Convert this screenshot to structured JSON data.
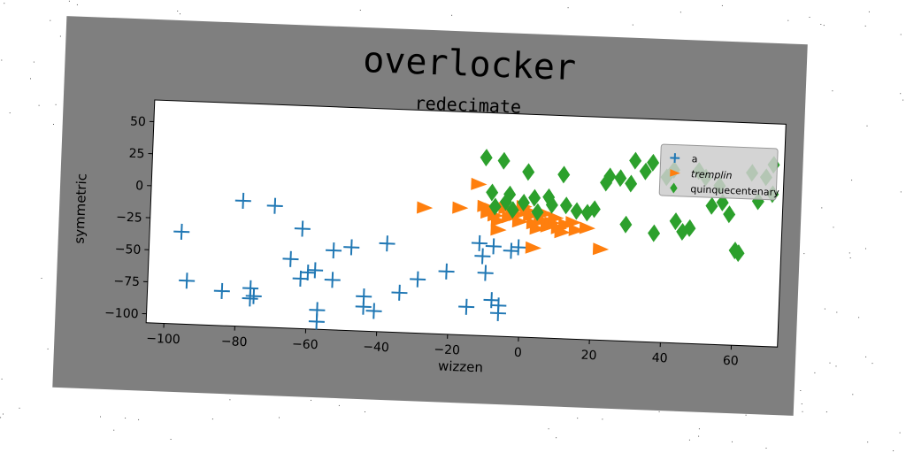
{
  "chart_data": {
    "type": "scatter",
    "title": "overlocker",
    "subtitle": "redecimate",
    "xlabel": "wizzen",
    "ylabel": "symmetric",
    "xlim": [
      -105,
      73
    ],
    "ylim": [
      -107,
      67
    ],
    "xticks": [
      -100,
      -80,
      -60,
      -40,
      -20,
      0,
      20,
      40,
      60
    ],
    "yticks": [
      50,
      25,
      0,
      -25,
      -50,
      -75,
      -100
    ],
    "legend_position": "top-right",
    "grid": false,
    "series": [
      {
        "name": "a",
        "marker": "plus",
        "color": "#1f77b4",
        "points": [
          [
            -96,
            -35
          ],
          [
            -94,
            -73
          ],
          [
            -84,
            -80
          ],
          [
            -79,
            -9
          ],
          [
            -76,
            -77
          ],
          [
            -76,
            -85
          ],
          [
            -75,
            -83
          ],
          [
            -70,
            -12
          ],
          [
            -62,
            -29
          ],
          [
            -65,
            -53
          ],
          [
            -62,
            -68
          ],
          [
            -60,
            -63
          ],
          [
            -58,
            -61
          ],
          [
            -57,
            -92
          ],
          [
            -57,
            -101
          ],
          [
            -53,
            -45
          ],
          [
            -53,
            -68
          ],
          [
            -48,
            -42
          ],
          [
            -44,
            -80
          ],
          [
            -44,
            -88
          ],
          [
            -41,
            -91
          ],
          [
            -38,
            -38
          ],
          [
            -34,
            -76
          ],
          [
            -29,
            -65
          ],
          [
            -21,
            -58
          ],
          [
            -15,
            -85
          ],
          [
            -12,
            -35
          ],
          [
            -11,
            -45
          ],
          [
            -10,
            -58
          ],
          [
            -8,
            -79
          ],
          [
            -6,
            -83
          ],
          [
            -6,
            -89
          ],
          [
            -8,
            -37
          ],
          [
            -3,
            -40
          ],
          [
            -1,
            -37
          ]
        ]
      },
      {
        "name": "tremplin",
        "marker": "triangle-right",
        "color": "#ff7f0e",
        "points": [
          [
            -28,
            -9
          ],
          [
            -18,
            -8
          ],
          [
            -11,
            -6
          ],
          [
            -10,
            -11
          ],
          [
            -9,
            -8
          ],
          [
            -8,
            -13
          ],
          [
            -7,
            -17
          ],
          [
            -7,
            -24
          ],
          [
            -5,
            -7
          ],
          [
            -4,
            -14
          ],
          [
            -3,
            -10
          ],
          [
            -2,
            -12
          ],
          [
            -1,
            -17
          ],
          [
            0,
            -5
          ],
          [
            1,
            -8
          ],
          [
            2,
            -12
          ],
          [
            3,
            -18
          ],
          [
            4,
            -22
          ],
          [
            5,
            -15
          ],
          [
            6,
            -10
          ],
          [
            7,
            -20
          ],
          [
            8,
            -17
          ],
          [
            9,
            -13
          ],
          [
            10,
            -21
          ],
          [
            11,
            -24
          ],
          [
            12,
            -18
          ],
          [
            14,
            -16
          ],
          [
            15,
            -22
          ],
          [
            18,
            -20
          ],
          [
            -13,
            11
          ],
          [
            3,
            -37
          ],
          [
            22,
            -36
          ]
        ]
      },
      {
        "name": "quinquecentenary",
        "marker": "diamond",
        "color": "#2ca02c",
        "points": [
          [
            -11,
            32
          ],
          [
            -6,
            30
          ],
          [
            -9,
            5
          ],
          [
            -8,
            -6
          ],
          [
            -5,
            -2
          ],
          [
            -4,
            4
          ],
          [
            -3,
            -8
          ],
          [
            0,
            -2
          ],
          [
            1,
            22
          ],
          [
            3,
            2
          ],
          [
            4,
            -9
          ],
          [
            7,
            3
          ],
          [
            8,
            -3
          ],
          [
            11,
            21
          ],
          [
            12,
            -3
          ],
          [
            15,
            -7
          ],
          [
            18,
            -8
          ],
          [
            20,
            -5
          ],
          [
            23,
            16
          ],
          [
            24,
            21
          ],
          [
            27,
            20
          ],
          [
            29,
            -16
          ],
          [
            30,
            16
          ],
          [
            31,
            34
          ],
          [
            34,
            26
          ],
          [
            36,
            33
          ],
          [
            37,
            -22
          ],
          [
            40,
            22
          ],
          [
            42,
            28
          ],
          [
            43,
            -12
          ],
          [
            45,
            -20
          ],
          [
            47,
            -17
          ],
          [
            49,
            28
          ],
          [
            51,
            23
          ],
          [
            53,
            1
          ],
          [
            55,
            17
          ],
          [
            56,
            4
          ],
          [
            58,
            -5
          ],
          [
            60,
            -33
          ],
          [
            61,
            -35
          ],
          [
            64,
            28
          ],
          [
            66,
            6
          ],
          [
            68,
            25
          ],
          [
            70,
            35
          ],
          [
            70,
            12
          ]
        ]
      }
    ]
  }
}
